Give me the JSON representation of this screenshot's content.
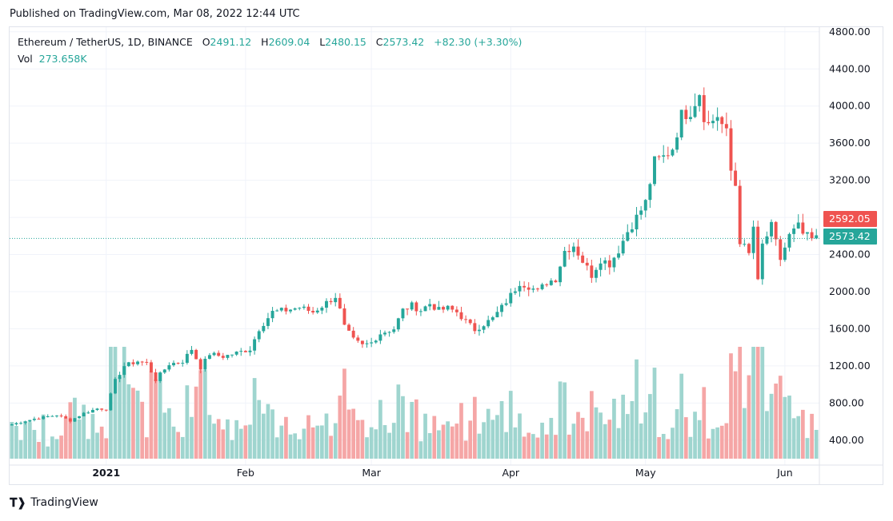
{
  "header": {
    "published": "Published on TradingView.com, Mar 08, 2022 12:44 UTC"
  },
  "legend": {
    "symbol": "Ethereum / TetherUS, 1D, BINANCE",
    "open_label": "O",
    "open": "2491.12",
    "high_label": "H",
    "high": "2609.04",
    "low_label": "L",
    "low": "2480.15",
    "close_label": "C",
    "close": "2573.42",
    "change": "+82.30 (+3.30%)",
    "vol_label": "Vol",
    "vol": "273.658K"
  },
  "price_tags": {
    "current": "2592.05",
    "last": "2573.42"
  },
  "footer": {
    "brand": "TradingView"
  },
  "colors": {
    "up": "#26a69a",
    "down": "#ef5350",
    "up_vol": "#9fd5cf",
    "down_vol": "#f5a6a6",
    "grid": "#f0f3fa"
  },
  "chart_data": {
    "type": "candlestick",
    "title": "Ethereum / TetherUS, 1D, BINANCE",
    "y_ticks": [
      400,
      800,
      1200,
      1600,
      2000,
      2400,
      2800,
      3200,
      3600,
      4000,
      4400,
      4800
    ],
    "y_tick_labels": [
      "400.00",
      "800.00",
      "1200.00",
      "1600.00",
      "2000.00",
      "2400.00",
      "2800.00",
      "3200.00",
      "3600.00",
      "4000.00",
      "4400.00",
      "4800.00"
    ],
    "ylim": [
      200,
      4850
    ],
    "x_labels": [
      {
        "label": "2021",
        "index": 21
      },
      {
        "label": "Feb",
        "index": 52
      },
      {
        "label": "Mar",
        "index": 80
      },
      {
        "label": "Apr",
        "index": 111
      },
      {
        "label": "May",
        "index": 141
      },
      {
        "label": "Jun",
        "index": 172
      }
    ],
    "close_path": [
      [
        0,
        570
      ],
      [
        5,
        630
      ],
      [
        10,
        670
      ],
      [
        13,
        610
      ],
      [
        16,
        690
      ],
      [
        19,
        740
      ],
      [
        21,
        735
      ],
      [
        23,
        1040
      ],
      [
        25,
        1200
      ],
      [
        28,
        1250
      ],
      [
        30,
        1230
      ],
      [
        32,
        1050
      ],
      [
        35,
        1220
      ],
      [
        38,
        1250
      ],
      [
        40,
        1380
      ],
      [
        42,
        1180
      ],
      [
        44,
        1330
      ],
      [
        47,
        1300
      ],
      [
        50,
        1340
      ],
      [
        53,
        1380
      ],
      [
        55,
        1600
      ],
      [
        58,
        1780
      ],
      [
        61,
        1800
      ],
      [
        64,
        1830
      ],
      [
        67,
        1780
      ],
      [
        70,
        1880
      ],
      [
        72,
        1950
      ],
      [
        73,
        1800
      ],
      [
        74,
        1620
      ],
      [
        76,
        1480
      ],
      [
        78,
        1420
      ],
      [
        80,
        1450
      ],
      [
        82,
        1550
      ],
      [
        85,
        1600
      ],
      [
        87,
        1800
      ],
      [
        89,
        1850
      ],
      [
        91,
        1800
      ],
      [
        93,
        1870
      ],
      [
        95,
        1800
      ],
      [
        97,
        1820
      ],
      [
        99,
        1780
      ],
      [
        101,
        1680
      ],
      [
        103,
        1590
      ],
      [
        105,
        1650
      ],
      [
        107,
        1710
      ],
      [
        109,
        1830
      ],
      [
        111,
        1960
      ],
      [
        113,
        2100
      ],
      [
        115,
        2060
      ],
      [
        117,
        2000
      ],
      [
        119,
        2100
      ],
      [
        121,
        2140
      ],
      [
        123,
        2440
      ],
      [
        125,
        2500
      ],
      [
        127,
        2330
      ],
      [
        129,
        2180
      ],
      [
        131,
        2350
      ],
      [
        133,
        2300
      ],
      [
        135,
        2450
      ],
      [
        137,
        2650
      ],
      [
        139,
        2800
      ],
      [
        141,
        2960
      ],
      [
        143,
        3400
      ],
      [
        145,
        3450
      ],
      [
        147,
        3550
      ],
      [
        149,
        3900
      ],
      [
        151,
        3950
      ],
      [
        153,
        4150
      ],
      [
        154,
        3900
      ],
      [
        155,
        3800
      ],
      [
        157,
        3900
      ],
      [
        159,
        3700
      ],
      [
        160,
        3300
      ],
      [
        161,
        3150
      ],
      [
        162,
        2550
      ],
      [
        164,
        2400
      ],
      [
        165,
        2700
      ],
      [
        166,
        2100
      ],
      [
        167,
        2500
      ],
      [
        169,
        2700
      ],
      [
        171,
        2350
      ],
      [
        173,
        2600
      ],
      [
        175,
        2700
      ],
      [
        176,
        2620
      ],
      [
        178,
        2560
      ],
      [
        179,
        2573
      ]
    ],
    "volume_ticks_note": "Volume bars shown in lower pane (no separate axis)"
  }
}
